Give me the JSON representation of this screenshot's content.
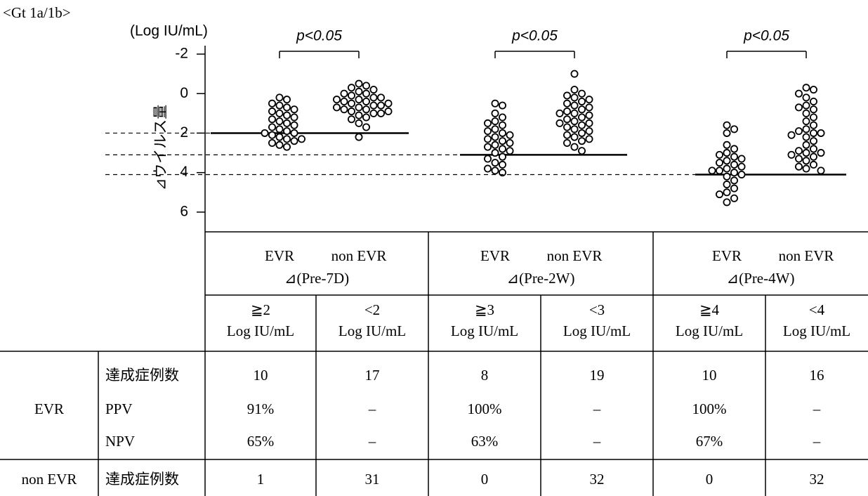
{
  "chart_data": {
    "type": "dot_strip",
    "corner_label": "<Gt 1a/1b>",
    "y_unit": "(Log IU/mL)",
    "y_label": "⊿ウイルス量",
    "ylim": [
      -2,
      7
    ],
    "yticks": [
      -2,
      0,
      2,
      4,
      6
    ],
    "y_inverted": true,
    "dot_fill": "#ffffff",
    "dot_stroke": "#000000",
    "groups": [
      {
        "interval": "⊿(Pre-7D)",
        "annotation": "p<0.05",
        "threshold": 2,
        "series": [
          {
            "name": "EVR",
            "values": [
              0.2,
              0.3,
              0.5,
              0.6,
              0.7,
              0.8,
              0.9,
              1.0,
              1.1,
              1.2,
              1.3,
              1.4,
              1.5,
              1.6,
              1.7,
              1.8,
              1.9,
              2.0,
              2.0,
              2.1,
              2.2,
              2.3,
              2.3,
              2.4,
              2.5,
              2.6,
              2.7
            ]
          },
          {
            "name": "non EVR",
            "values": [
              -0.5,
              -0.4,
              -0.3,
              -0.2,
              -0.1,
              0,
              0,
              0.1,
              0.2,
              0.2,
              0.3,
              0.3,
              0.4,
              0.4,
              0.5,
              0.5,
              0.6,
              0.6,
              0.7,
              0.7,
              0.8,
              0.8,
              0.9,
              0.9,
              1.0,
              1.0,
              1.1,
              1.2,
              1.3,
              1.5,
              1.7,
              2.2
            ]
          }
        ]
      },
      {
        "interval": "⊿(Pre-2W)",
        "annotation": "p<0.05",
        "threshold": 3.1,
        "series": [
          {
            "name": "EVR",
            "values": [
              0.5,
              0.6,
              1.0,
              1.2,
              1.4,
              1.5,
              1.6,
              1.8,
              1.9,
              2.0,
              2.1,
              2.2,
              2.3,
              2.4,
              2.5,
              2.6,
              2.7,
              2.8,
              2.9,
              3.0,
              3.2,
              3.3,
              3.5,
              3.6,
              3.8,
              3.9,
              4.0
            ]
          },
          {
            "name": "non EVR",
            "values": [
              -1.0,
              -0.2,
              0,
              0.1,
              0.2,
              0.3,
              0.4,
              0.5,
              0.6,
              0.7,
              0.8,
              0.9,
              1.0,
              1.0,
              1.1,
              1.2,
              1.3,
              1.4,
              1.5,
              1.5,
              1.6,
              1.7,
              1.8,
              1.9,
              2.0,
              2.1,
              2.2,
              2.3,
              2.4,
              2.5,
              2.7,
              2.9
            ]
          }
        ]
      },
      {
        "interval": "⊿(Pre-4W)",
        "annotation": "p<0.05",
        "threshold": 4.1,
        "series": [
          {
            "name": "EVR",
            "values": [
              1.6,
              1.8,
              2.0,
              2.6,
              2.8,
              3.0,
              3.1,
              3.2,
              3.3,
              3.4,
              3.5,
              3.6,
              3.7,
              3.8,
              3.9,
              3.9,
              4.0,
              4.1,
              4.2,
              4.4,
              4.6,
              4.8,
              5.0,
              5.1,
              5.3,
              5.5
            ]
          },
          {
            "name": "non EVR",
            "values": [
              -0.3,
              -0.2,
              0,
              0.2,
              0.4,
              0.6,
              0.7,
              0.8,
              1.0,
              1.2,
              1.4,
              1.6,
              1.8,
              1.9,
              2.0,
              2.0,
              2.1,
              2.2,
              2.4,
              2.6,
              2.8,
              2.9,
              3.0,
              3.0,
              3.1,
              3.2,
              3.3,
              3.4,
              3.6,
              3.7,
              3.8,
              3.9
            ]
          }
        ]
      }
    ]
  },
  "table": {
    "header_cells": [
      [
        "≧2",
        "Log IU/mL"
      ],
      [
        "<2",
        "Log IU/mL"
      ],
      [
        "≧3",
        "Log IU/mL"
      ],
      [
        "<3",
        "Log IU/mL"
      ],
      [
        "≧4",
        "Log IU/mL"
      ],
      [
        "<4",
        "Log IU/mL"
      ]
    ],
    "row_groups": [
      {
        "name": "EVR",
        "rows": [
          {
            "label": "達成症例数",
            "cells": [
              "10",
              "17",
              "8",
              "19",
              "10",
              "16"
            ]
          },
          {
            "label": "PPV",
            "cells": [
              "91%",
              "–",
              "100%",
              "–",
              "100%",
              "–"
            ]
          },
          {
            "label": "NPV",
            "cells": [
              "65%",
              "–",
              "63%",
              "–",
              "67%",
              "–"
            ]
          }
        ]
      },
      {
        "name": "non EVR",
        "rows": [
          {
            "label": "達成症例数",
            "cells": [
              "1",
              "31",
              "0",
              "32",
              "0",
              "32"
            ]
          }
        ]
      }
    ]
  }
}
